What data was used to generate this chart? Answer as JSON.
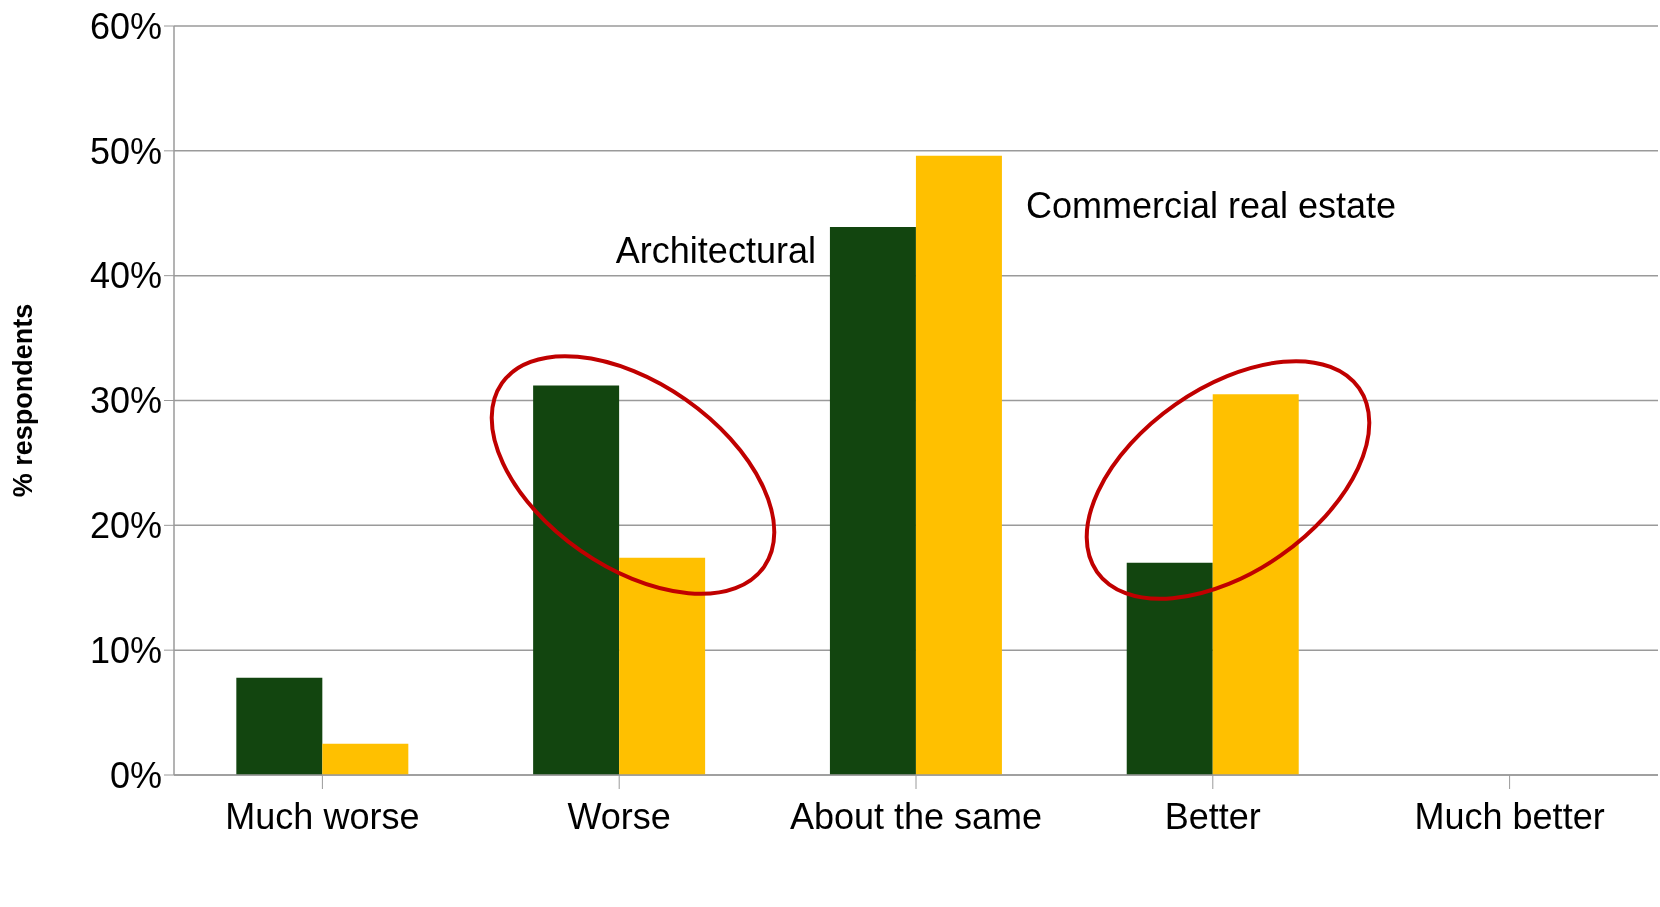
{
  "chart_data": {
    "type": "bar",
    "ylabel": "% respondents",
    "categories": [
      "Much worse",
      "Worse",
      "About the same",
      "Better",
      "Much better"
    ],
    "series": [
      {
        "name": "Architectural",
        "color": "#12450f",
        "values": [
          7.8,
          31.2,
          43.9,
          17.0,
          0
        ]
      },
      {
        "name": "Commercial real estate",
        "color": "#ffc000",
        "values": [
          2.5,
          17.4,
          49.6,
          30.5,
          0
        ]
      }
    ],
    "ylim": [
      0,
      60
    ],
    "yticks": [
      {
        "value": 0,
        "label": "0%"
      },
      {
        "value": 10,
        "label": "10%"
      },
      {
        "value": 20,
        "label": "20%"
      },
      {
        "value": 30,
        "label": "30%"
      },
      {
        "value": 40,
        "label": "40%"
      },
      {
        "value": 50,
        "label": "50%"
      },
      {
        "value": 60,
        "label": "60%"
      }
    ],
    "grid": "y",
    "legend": false
  }
}
